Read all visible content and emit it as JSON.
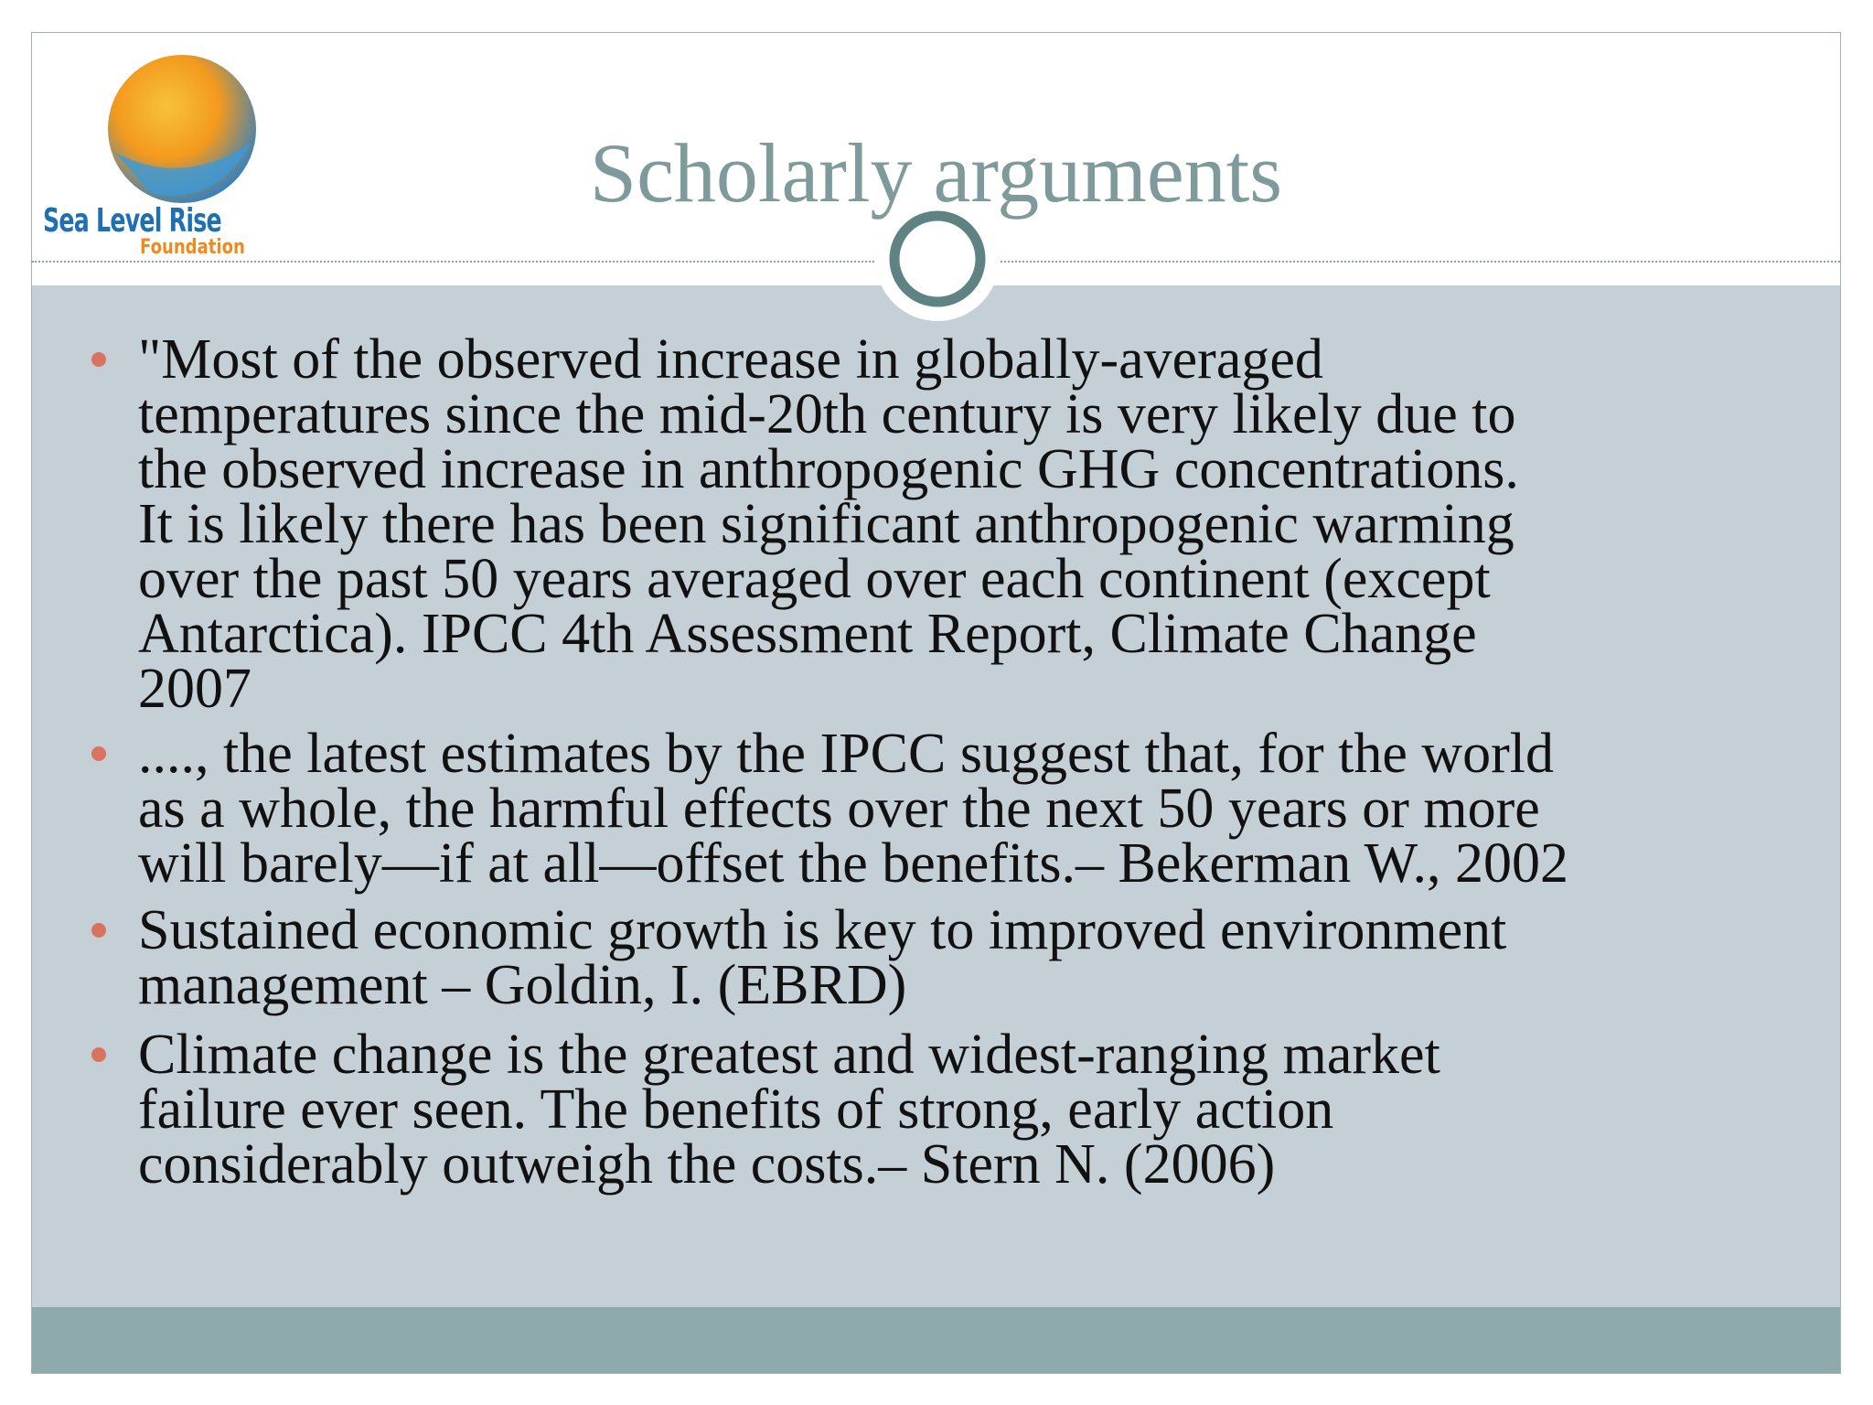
{
  "logo": {
    "name": "Sea Level Rise",
    "subname": "Foundation"
  },
  "title": "Scholarly arguments",
  "bullets": [
    [
      "\"Most of the observed increase in globally-averaged",
      "temperatures since the mid-20th century is very likely due to",
      "the observed increase in anthropogenic GHG concentrations.",
      "It is likely there has been significant anthropogenic warming",
      "over the past 50 years averaged over each continent (except",
      "Antarctica). IPCC 4th Assessment Report, Climate Change",
      "2007"
    ],
    [
      "...., the latest estimates by the IPCC suggest that, for the world",
      "as a whole, the harmful effects over the next 50 years or more",
      "will barely—if at all—offset the benefits.– Bekerman W., 2002"
    ],
    [
      "Sustained economic growth is key to improved environment",
      "management – Goldin, I. (EBRD)"
    ],
    [
      "Climate change is the greatest and widest-ranging market",
      "failure ever seen. The benefits of strong, early action",
      "considerably outweigh the costs.– Stern N. (2006)"
    ]
  ]
}
